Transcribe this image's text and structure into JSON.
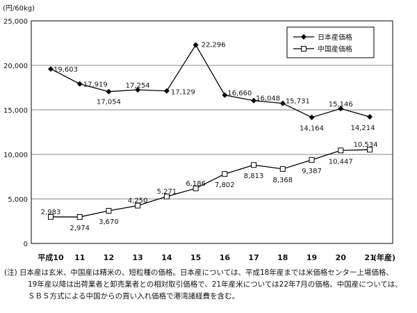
{
  "chart_data": {
    "type": "line",
    "unit_label": "(円/60kg)",
    "categories": [
      "平成10",
      "11",
      "12",
      "13",
      "14",
      "15",
      "16",
      "17",
      "18",
      "19",
      "20",
      "21"
    ],
    "x_suffix": "(年産)",
    "ylim": [
      0,
      25000
    ],
    "yticks": [
      0,
      5000,
      10000,
      15000,
      20000,
      25000
    ],
    "ytick_labels": [
      "0",
      "5,000",
      "10,000",
      "15,000",
      "20,000",
      "25,000"
    ],
    "grid": true,
    "legend_position": "top-right",
    "series": [
      {
        "name": "日本産価格",
        "marker": "filled-diamond",
        "values": [
          19603,
          17919,
          17054,
          17254,
          17129,
          22296,
          16660,
          16048,
          15731,
          14164,
          15146,
          14214
        ],
        "labels": [
          "19,603",
          "17,919",
          "17,054",
          "17,254",
          "17,129",
          "22,296",
          "16,660",
          "16,048",
          "15,731",
          "14,164",
          "15,146",
          "14,214"
        ]
      },
      {
        "name": "中国産価格",
        "marker": "open-square",
        "values": [
          2983,
          2974,
          3670,
          4250,
          5271,
          6186,
          7802,
          8813,
          8368,
          9387,
          10447,
          10534
        ],
        "labels": [
          "2,983",
          "2,974",
          "3,670",
          "4,250",
          "5,271",
          "6,186",
          "7,802",
          "8,813",
          "8,368",
          "9,387",
          "10,447",
          "10,534"
        ]
      }
    ]
  },
  "note": {
    "line1": "(注) 日本産は玄米、中国産は精米の、短粒種の価格。日本産については、平成18年産までは米価格センター上場価格、",
    "line2": "19年産以降は出荷業者と卸売業者との相対取引価格で、21年産米については22年7月の価格。中国産については、",
    "line3": "ＳＢＳ方式による中国からの買い入れ価格で港湾諸経費を含む。"
  }
}
